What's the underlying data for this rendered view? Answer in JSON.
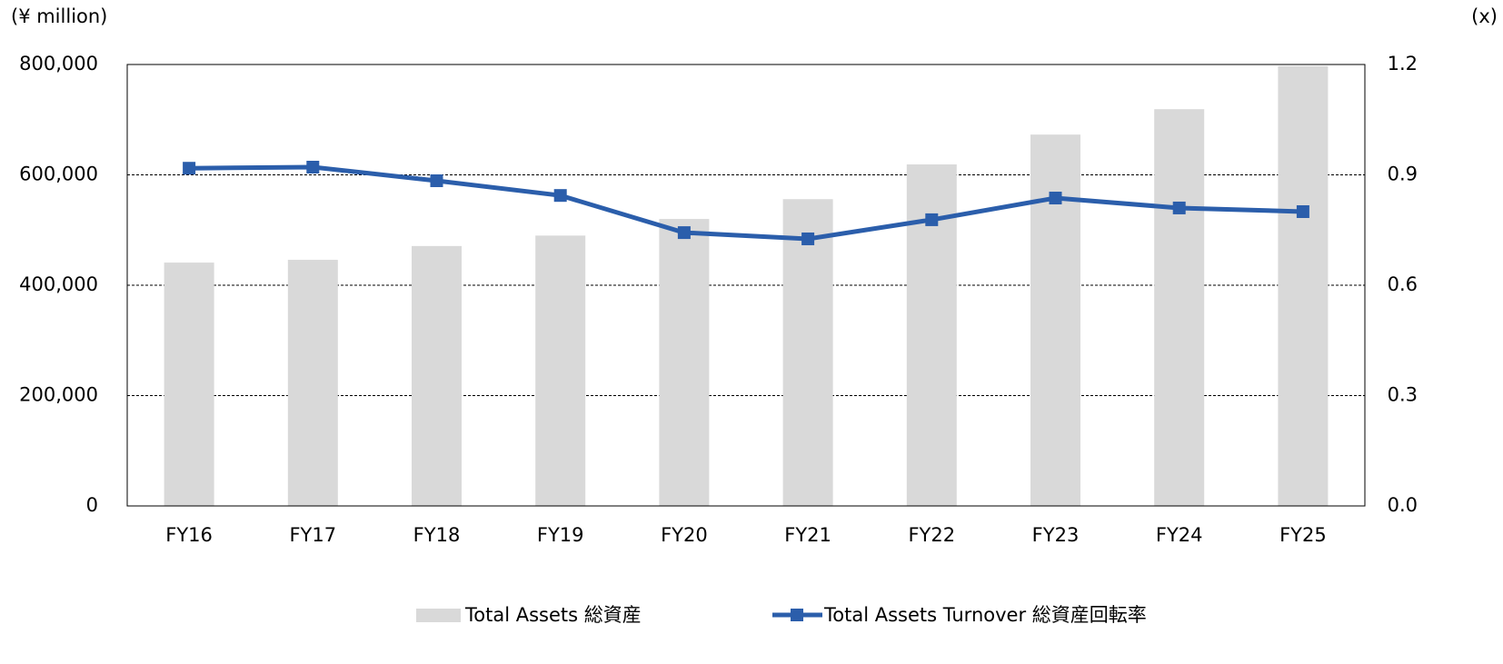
{
  "chart_data": {
    "type": "bar_line",
    "y_label": "(¥ million)",
    "y2_label": "(x)",
    "categories": [
      "FY16",
      "FY17",
      "FY18",
      "FY19",
      "FY20",
      "FY21",
      "FY22",
      "FY23",
      "FY24",
      "FY25"
    ],
    "series": [
      {
        "name": "Total Assets  総資産",
        "color": "#d9d9d9",
        "type": "bar",
        "values": [
          441000,
          446000,
          471000,
          490000,
          520000,
          556000,
          619000,
          673000,
          719000,
          797000
        ]
      },
      {
        "name": "Total Assets Turnover 総資産回転率",
        "color": "#2b5eab",
        "type": "line",
        "axis": "y2",
        "values": [
          0.918,
          0.921,
          0.884,
          0.844,
          0.743,
          0.726,
          0.778,
          0.837,
          0.81,
          0.8
        ]
      }
    ],
    "ylim": [
      0,
      800000
    ],
    "yticks": [
      0,
      {
        "value": 200000,
        "label": "200,000"
      },
      {
        "value": 400000,
        "label": "400,000"
      },
      {
        "value": 600000,
        "label": "600,000"
      },
      {
        "value": 800000,
        "label": "800,000"
      }
    ],
    "y2lim": [
      0,
      1.2
    ],
    "y2ticks": [
      {
        "value": 0,
        "label": "0.0"
      },
      0.3,
      0.6,
      0.9,
      1.2
    ],
    "grid": true,
    "legend": "bottom"
  }
}
